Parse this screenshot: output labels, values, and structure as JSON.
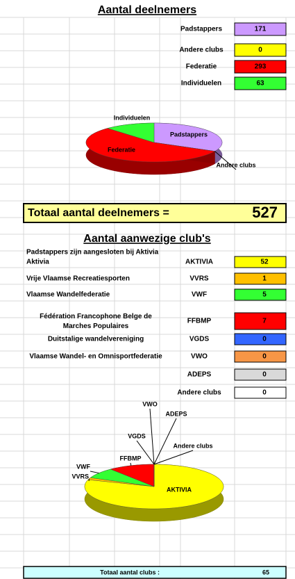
{
  "section1": {
    "title": "Aantal deelnemers",
    "rows": [
      {
        "label": "Padstappers",
        "value": 171,
        "color": "#cc99ff"
      },
      {
        "label": "Andere clubs",
        "value": 0,
        "color": "#ffff00"
      },
      {
        "label": "Federatie",
        "value": 293,
        "color": "#ff0000"
      },
      {
        "label": "Individuelen",
        "value": 63,
        "color": "#33ff33"
      }
    ],
    "total_label": "Totaal aantal deelnemers =",
    "total": 527
  },
  "section2": {
    "title": "Aantal aanwezige club's",
    "note": "Padstappers  zijn aangesloten bij Aktivia",
    "rows": [
      {
        "name": "Aktivia",
        "code": "AKTIVIA",
        "value": 52,
        "color": "#ffff00"
      },
      {
        "name": "Vrije Vlaamse Recreatiesporten",
        "code": "VVRS",
        "value": 1,
        "color": "#ffc000"
      },
      {
        "name": "Vlaamse Wandelfederatie",
        "code": "VWF",
        "value": 5,
        "color": "#33ff33"
      },
      {
        "name": "Fédération Francophone Belge de Marches Populaires",
        "code": "FFBMP",
        "value": 7,
        "color": "#ff0000"
      },
      {
        "name": "Duitstalige wandelvereniging",
        "code": "VGDS",
        "value": 0,
        "color": "#3366ff"
      },
      {
        "name": "Vlaamse Wandel- en Omnisportfederatie",
        "code": "VWO",
        "value": 0,
        "color": "#f79646"
      },
      {
        "code": "ADEPS",
        "value": 0,
        "color": "#d9d9d9"
      },
      {
        "code": "Andere clubs",
        "value": 0,
        "color": "#ffffff"
      }
    ],
    "total_label": "Totaal aantal clubs :",
    "total": 65
  }
}
